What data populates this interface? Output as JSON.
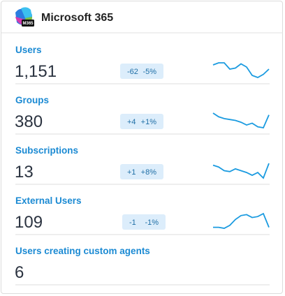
{
  "header": {
    "title": "Microsoft 365",
    "icon_badge": "M365"
  },
  "metrics": [
    {
      "label": "Users",
      "value": "1,151",
      "change": "-62",
      "percent": "-5%",
      "trend": [
        8,
        9,
        9,
        6,
        6.5,
        8.5,
        7,
        3,
        2,
        3.5,
        6
      ]
    },
    {
      "label": "Groups",
      "value": "380",
      "change": "+4",
      "percent": "+1%",
      "trend": [
        10,
        8,
        7,
        6.5,
        6,
        5,
        3.5,
        4.5,
        2.5,
        2,
        9
      ]
    },
    {
      "label": "Subscriptions",
      "value": "13",
      "change": "+1",
      "percent": "+8%",
      "trend": [
        8,
        7,
        5,
        4.5,
        6,
        5,
        4,
        2.5,
        4,
        1,
        9
      ]
    },
    {
      "label": "External Users",
      "value": "109",
      "change": "-1",
      "percent": "-1%",
      "trend": [
        2,
        2,
        1.5,
        3,
        6,
        8,
        8.5,
        7,
        7.5,
        9,
        2
      ]
    },
    {
      "label": "Users creating custom agents",
      "value": "6"
    }
  ]
}
